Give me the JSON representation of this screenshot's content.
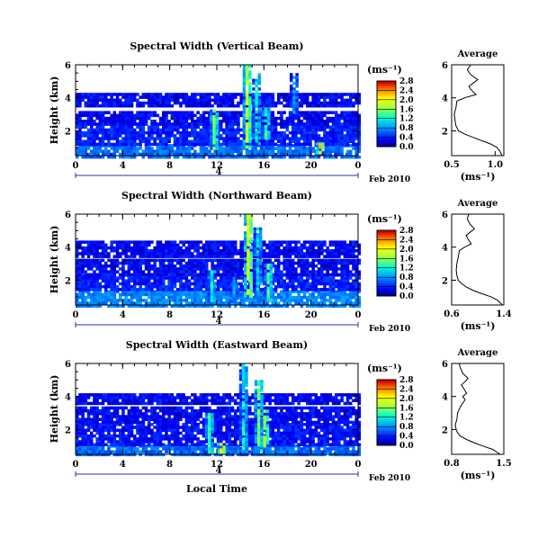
{
  "figure": {
    "xlabel": "Local Time",
    "date_label": "Feb 2010",
    "day_label": "4",
    "colorbar_unit": "(ms⁻¹)",
    "profile_title": "Average",
    "profile_unit": "(ms⁻¹)"
  },
  "chart_data": [
    {
      "type": "heatmap",
      "title": "Spectral Width (Vertical Beam)",
      "ylabel": "Height (km)",
      "xlabel": "Local Time",
      "x_ticks": [
        "0",
        "4",
        "8",
        "12",
        "16",
        "20",
        "0"
      ],
      "x_range": [
        0,
        24
      ],
      "y_ticks": [
        "2",
        "4",
        "6"
      ],
      "y_range": [
        0.5,
        6.0
      ],
      "colorbar": {
        "ticks": [
          "0.0",
          "0.4",
          "0.8",
          "1.2",
          "1.6",
          "2.0",
          "2.4",
          "2.8"
        ],
        "range": [
          0,
          3.0
        ]
      },
      "layers": [
        {
          "y0": 0.5,
          "y1": 1.2,
          "value": 0.7
        },
        {
          "y0": 1.2,
          "y1": 2.5,
          "value": 0.4
        },
        {
          "y0": 2.5,
          "y1": 3.2,
          "value": 0.3
        },
        {
          "y0": 3.6,
          "y1": 4.3,
          "value": 0.3
        }
      ],
      "plumes": [
        {
          "x": 11.7,
          "y0": 1.0,
          "y1": 3.3,
          "value": 1.8
        },
        {
          "x": 14.5,
          "y0": 1.0,
          "y1": 6.0,
          "value": 2.2
        },
        {
          "x": 15.3,
          "y0": 1.2,
          "y1": 5.5,
          "value": 1.3
        },
        {
          "x": 16.1,
          "y0": 1.5,
          "y1": 3.4,
          "value": 1.6
        },
        {
          "x": 18.5,
          "y0": 3.2,
          "y1": 5.5,
          "value": 0.9
        },
        {
          "x": 20.7,
          "y0": 0.7,
          "y1": 1.3,
          "value": 2.6
        }
      ],
      "profile": {
        "xlim": [
          0.5,
          1.1
        ],
        "x_ticks": [
          "0.5",
          "1.0"
        ],
        "y_ticks": [
          "2",
          "4",
          "6"
        ],
        "x": [
          1.08,
          1.05,
          1.02,
          0.95,
          0.85,
          0.75,
          0.65,
          0.58,
          0.55,
          0.54,
          0.53,
          0.55,
          0.56,
          0.65,
          0.78,
          0.72,
          0.7,
          0.75,
          0.8,
          0.72,
          0.68,
          0.72
        ],
        "y": [
          0.5,
          0.8,
          1.0,
          1.2,
          1.4,
          1.6,
          1.8,
          2.0,
          2.3,
          2.6,
          3.0,
          3.4,
          3.8,
          4.0,
          4.2,
          4.5,
          4.7,
          4.9,
          5.1,
          5.4,
          5.7,
          6.0
        ]
      }
    },
    {
      "type": "heatmap",
      "title": "Spectral Width (Northward Beam)",
      "ylabel": "Height (km)",
      "xlabel": "Local Time",
      "x_ticks": [
        "0",
        "4",
        "8",
        "12",
        "16",
        "20",
        "0"
      ],
      "x_range": [
        0,
        24
      ],
      "y_ticks": [
        "2",
        "4",
        "6"
      ],
      "y_range": [
        0.5,
        6.0
      ],
      "colorbar": {
        "ticks": [
          "0.0",
          "0.4",
          "0.8",
          "1.2",
          "1.6",
          "2.0",
          "2.4",
          "2.8"
        ],
        "range": [
          0,
          3.0
        ]
      },
      "layers": [
        {
          "y0": 0.5,
          "y1": 1.4,
          "value": 0.8
        },
        {
          "y0": 1.4,
          "y1": 2.4,
          "value": 0.4
        },
        {
          "y0": 2.4,
          "y1": 3.3,
          "value": 0.3
        },
        {
          "y0": 3.5,
          "y1": 4.4,
          "value": 0.3
        }
      ],
      "plumes": [
        {
          "x": 11.5,
          "y0": 0.8,
          "y1": 2.6,
          "value": 1.4
        },
        {
          "x": 14.6,
          "y0": 1.0,
          "y1": 6.0,
          "value": 2.4
        },
        {
          "x": 15.4,
          "y0": 1.5,
          "y1": 5.2,
          "value": 1.2
        },
        {
          "x": 16.3,
          "y0": 0.8,
          "y1": 3.0,
          "value": 1.6
        },
        {
          "x": 13.4,
          "y0": 0.8,
          "y1": 2.2,
          "value": 1.0
        }
      ],
      "profile": {
        "xlim": [
          0.6,
          1.4
        ],
        "x_ticks": [
          "0.6",
          "1.4"
        ],
        "y_ticks": [
          "2",
          "4",
          "6"
        ],
        "x": [
          1.38,
          1.3,
          1.2,
          1.05,
          0.92,
          0.82,
          0.75,
          0.7,
          0.68,
          0.67,
          0.68,
          0.7,
          0.72,
          0.8,
          0.9,
          0.85,
          0.82,
          0.88,
          0.95,
          0.88,
          0.84,
          0.86
        ],
        "y": [
          0.5,
          0.8,
          1.0,
          1.2,
          1.4,
          1.6,
          1.8,
          2.0,
          2.3,
          2.6,
          3.0,
          3.4,
          3.8,
          4.0,
          4.2,
          4.5,
          4.7,
          4.9,
          5.1,
          5.4,
          5.7,
          6.0
        ]
      }
    },
    {
      "type": "heatmap",
      "title": "Spectral Width (Eastward Beam)",
      "ylabel": "Height (km)",
      "xlabel": "Local Time",
      "x_ticks": [
        "0",
        "4",
        "8",
        "12",
        "16",
        "20",
        "0"
      ],
      "x_range": [
        0,
        24
      ],
      "y_ticks": [
        "2",
        "4",
        "6"
      ],
      "y_range": [
        0.5,
        6.0
      ],
      "colorbar": {
        "ticks": [
          "0.0",
          "0.4",
          "0.8",
          "1.2",
          "1.6",
          "2.0",
          "2.4",
          "2.8"
        ],
        "range": [
          0,
          3.0
        ]
      },
      "layers": [
        {
          "y0": 0.5,
          "y1": 1.1,
          "value": 0.7
        },
        {
          "y0": 1.1,
          "y1": 2.4,
          "value": 0.35
        },
        {
          "y0": 2.4,
          "y1": 3.4,
          "value": 0.3
        },
        {
          "y0": 3.6,
          "y1": 4.2,
          "value": 0.3
        }
      ],
      "plumes": [
        {
          "x": 11.3,
          "y0": 0.6,
          "y1": 3.0,
          "value": 1.6
        },
        {
          "x": 14.2,
          "y0": 0.8,
          "y1": 6.0,
          "value": 1.4
        },
        {
          "x": 15.5,
          "y0": 0.8,
          "y1": 5.0,
          "value": 1.8
        },
        {
          "x": 16.0,
          "y0": 1.0,
          "y1": 3.2,
          "value": 2.0
        },
        {
          "x": 12.3,
          "y0": 0.6,
          "y1": 1.2,
          "value": 2.4
        }
      ],
      "profile": {
        "xlim": [
          0.8,
          1.5
        ],
        "x_ticks": [
          "0.8",
          "1.5"
        ],
        "y_ticks": [
          "2",
          "4",
          "6"
        ],
        "x": [
          1.45,
          1.35,
          1.22,
          1.1,
          1.0,
          0.92,
          0.88,
          0.86,
          0.85,
          0.87,
          0.88,
          0.92,
          0.98,
          0.95,
          1.0,
          0.96,
          0.93,
          0.98,
          1.02,
          0.95,
          0.92,
          0.9
        ],
        "y": [
          0.5,
          0.8,
          1.0,
          1.2,
          1.4,
          1.6,
          1.8,
          2.0,
          2.3,
          2.6,
          3.0,
          3.4,
          3.8,
          4.0,
          4.2,
          4.5,
          4.7,
          4.9,
          5.1,
          5.4,
          5.7,
          6.0
        ]
      }
    }
  ]
}
